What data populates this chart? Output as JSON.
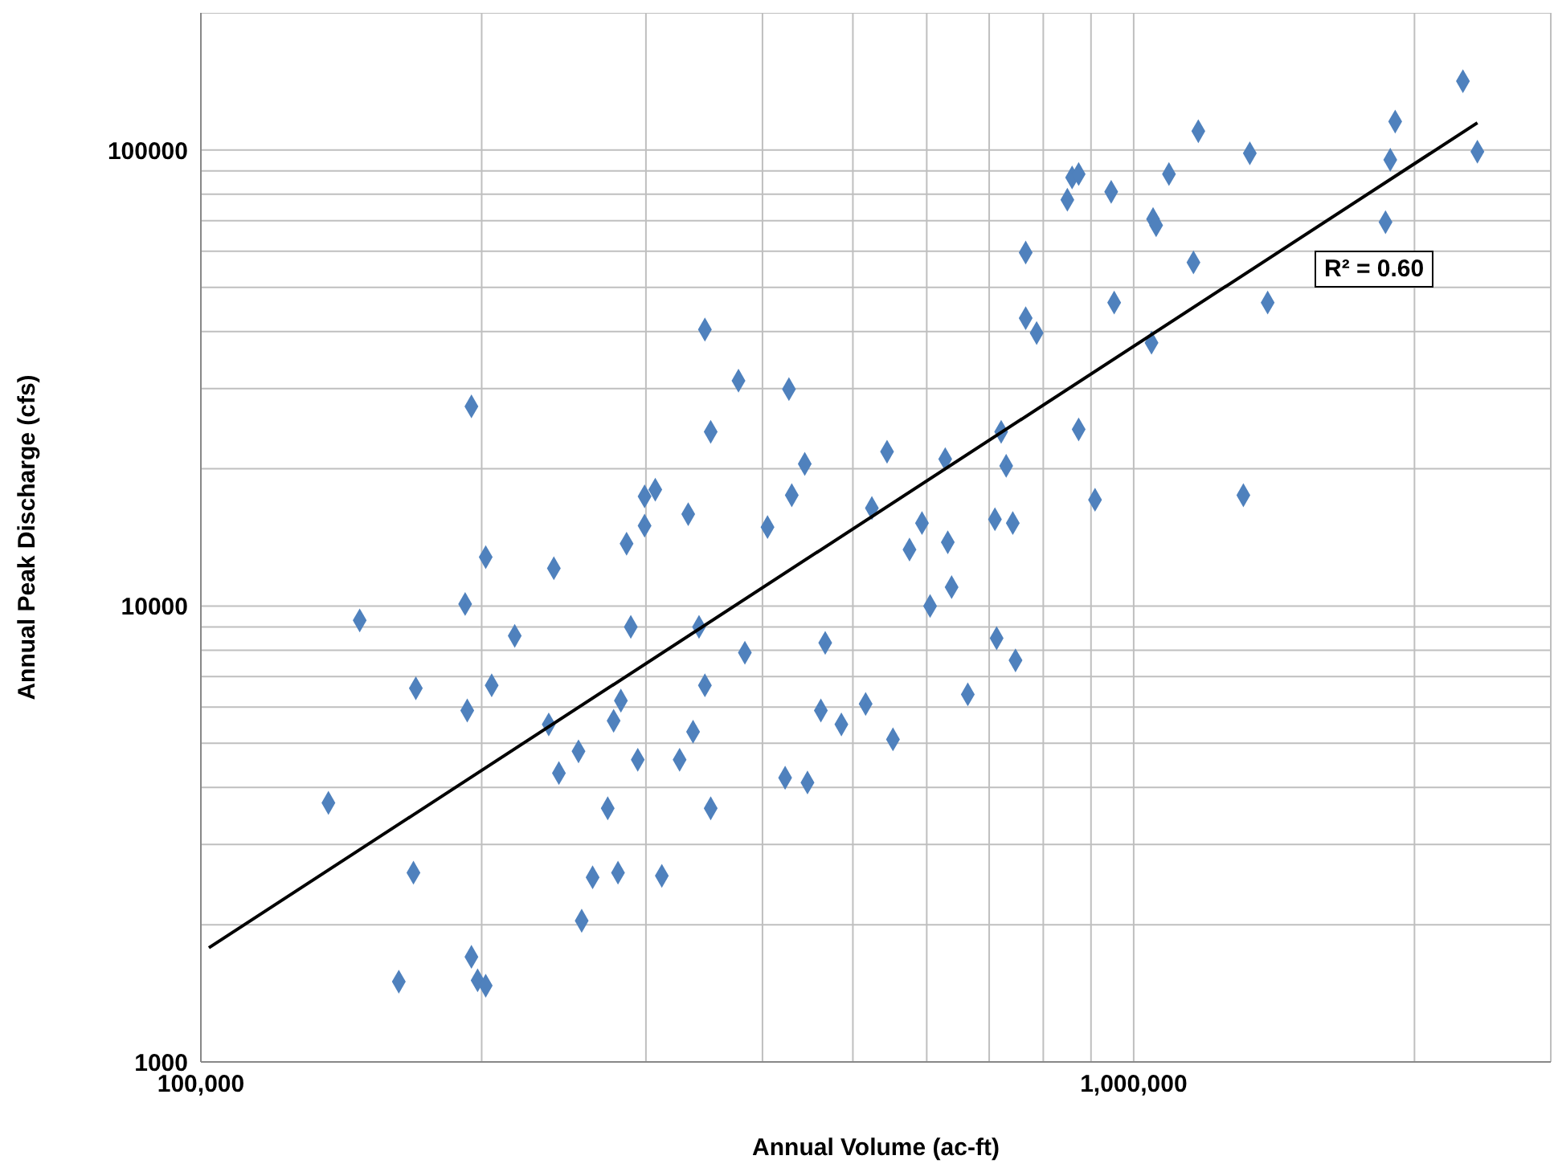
{
  "chart_data": {
    "type": "scatter",
    "xlabel": "Annual Volume (ac-ft)",
    "ylabel": "Annual Peak Discharge (cfs)",
    "log": "xy",
    "grid": true,
    "xlim": [
      100000,
      2800000
    ],
    "ylim": [
      1000,
      200000
    ],
    "xticks": [
      {
        "value": 100000,
        "label": "100,000"
      },
      {
        "value": 200000,
        "label": null
      },
      {
        "value": 300000,
        "label": null
      },
      {
        "value": 400000,
        "label": null
      },
      {
        "value": 500000,
        "label": null
      },
      {
        "value": 600000,
        "label": null
      },
      {
        "value": 700000,
        "label": null
      },
      {
        "value": 800000,
        "label": null
      },
      {
        "value": 900000,
        "label": null
      },
      {
        "value": 1000000,
        "label": "1,000,000"
      },
      {
        "value": 2000000,
        "label": null
      }
    ],
    "yticks": [
      1000,
      {
        "value": 2000,
        "label": null
      },
      {
        "value": 3000,
        "label": null
      },
      {
        "value": 4000,
        "label": null
      },
      {
        "value": 5000,
        "label": null
      },
      {
        "value": 6000,
        "label": null
      },
      {
        "value": 7000,
        "label": null
      },
      {
        "value": 8000,
        "label": null
      },
      {
        "value": 9000,
        "label": null
      },
      10000,
      {
        "value": 20000,
        "label": null
      },
      {
        "value": 30000,
        "label": null
      },
      {
        "value": 40000,
        "label": null
      },
      {
        "value": 50000,
        "label": null
      },
      {
        "value": 60000,
        "label": null
      },
      {
        "value": 70000,
        "label": null
      },
      {
        "value": 80000,
        "label": null
      },
      {
        "value": 90000,
        "label": null
      },
      100000,
      {
        "value": 200000,
        "label": null
      }
    ],
    "annotations": [
      "R² = 0.60"
    ],
    "series": [
      {
        "color": "#4f81bd",
        "marker": "diamond",
        "x": [
          137000,
          148000,
          163000,
          170000,
          169000,
          192000,
          193000,
          195000,
          195000,
          198000,
          202000,
          202000,
          205000,
          217000,
          236000,
          239000,
          242000,
          254000,
          256000,
          263000,
          273000,
          277000,
          280000,
          282000,
          286000,
          289000,
          294000,
          299000,
          299000,
          307000,
          312000,
          326000,
          333000,
          337000,
          342000,
          347000,
          347000,
          352000,
          352000,
          377000,
          383000,
          405000,
          423000,
          427000,
          430000,
          444000,
          447000,
          467000,
          462000,
          486000,
          516000,
          524000,
          544000,
          552000,
          575000,
          593000,
          605000,
          628000,
          632000,
          638000,
          664000,
          710000,
          713000,
          721000,
          730000,
          742000,
          747000,
          766000,
          766000,
          787000,
          849000,
          859000,
          873000,
          873000,
          909000,
          946000,
          953000,
          1045000,
          1049000,
          1057000,
          1091000,
          1159000,
          1173000,
          1311000,
          1332000,
          1392000,
          1862000,
          1884000,
          1907000,
          2254000,
          2336000
        ],
        "values": [
          3700,
          9300,
          1500,
          6600,
          2600,
          10100,
          5900,
          27400,
          1700,
          1510,
          1470,
          12800,
          6700,
          8600,
          5500,
          12100,
          4300,
          4800,
          2040,
          2540,
          3600,
          5600,
          2600,
          6200,
          13700,
          9000,
          4600,
          15000,
          17400,
          18000,
          2560,
          4600,
          15900,
          5300,
          9000,
          6700,
          40400,
          24100,
          3600,
          31200,
          7900,
          14900,
          4200,
          29900,
          17500,
          20500,
          4100,
          8300,
          5900,
          5500,
          6100,
          16400,
          21800,
          5100,
          13300,
          15200,
          10000,
          21000,
          13800,
          11000,
          6400,
          15500,
          8500,
          24100,
          20300,
          15200,
          7600,
          59600,
          42800,
          39700,
          77800,
          87100,
          88600,
          24400,
          17100,
          81000,
          46300,
          37800,
          70600,
          68400,
          88600,
          56700,
          110000,
          17500,
          98400,
          46300,
          69500,
          95200,
          115500,
          141600,
          99200
        ]
      },
      {
        "type": "line",
        "marker": "none",
        "color": "#000000",
        "x": [
          102000,
          2336000
        ],
        "values": [
          1780,
          114800
        ]
      }
    ]
  }
}
